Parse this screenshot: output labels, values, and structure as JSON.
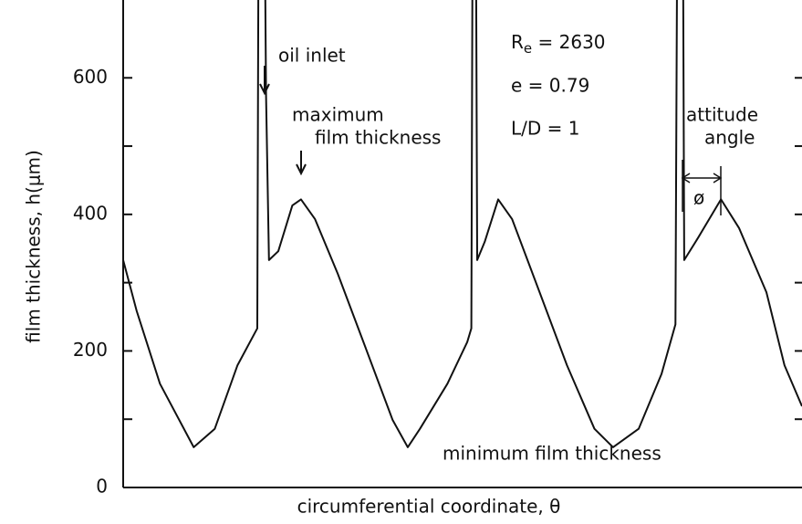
{
  "chart_data": {
    "type": "line",
    "y_label": "film thickness, h(μm)",
    "x_label": "circumferential coordinate,  θ",
    "annotations": {
      "oil_inlet": "oil inlet",
      "max_1": "maximum",
      "max_2": "film thickness",
      "re": [
        "R",
        "e",
        " = 2630"
      ],
      "ecc": "e = 0.79",
      "ld": "L/D = 1",
      "att_1": "attitude",
      "att_2": "angle",
      "phi": "ø",
      "min": "minimum film thickness"
    },
    "series": [
      {
        "name": null,
        "color": "#111111",
        "x": [
          0,
          23,
          63,
          121,
          157,
          196,
          230,
          232,
          243,
          245,
          250,
          266,
          290,
          305,
          329,
          368,
          415,
          462,
          488,
          509,
          556,
          590,
          597,
          599,
          605,
          607,
          620,
          643,
          667,
          714,
          761,
          808,
          840,
          884,
          923,
          947,
          950,
          960,
          962,
          986,
          1025,
          1056,
          1103,
          1134,
          1164
        ],
        "values": [
          333,
          259,
          152,
          59,
          86,
          179,
          233,
          800,
          800,
          574,
          333,
          346,
          413,
          422,
          393,
          313,
          206,
          99,
          59,
          86,
          152,
          213,
          233,
          800,
          800,
          333,
          360,
          422,
          393,
          286,
          179,
          86,
          59,
          86,
          166,
          239,
          800,
          800,
          333,
          366,
          422,
          380,
          286,
          179,
          119
        ]
      }
    ],
    "xlim": [
      0,
      1164
    ],
    "ylim": [
      0,
      714
    ],
    "yticks": [
      0,
      200,
      400,
      600
    ],
    "minor_yticks": [
      100,
      300,
      500
    ]
  }
}
